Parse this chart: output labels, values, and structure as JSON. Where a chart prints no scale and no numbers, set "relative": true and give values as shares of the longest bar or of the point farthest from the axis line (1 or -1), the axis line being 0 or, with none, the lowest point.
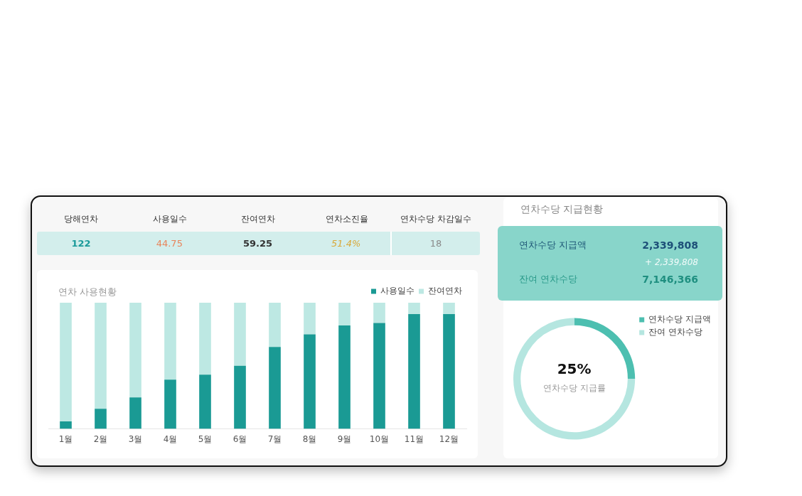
{
  "chart_data": [
    {
      "type": "other",
      "categories": [
        "당해연차",
        "사용일수",
        "잔여연차",
        "연차소진율",
        "연차수당 차감일수"
      ],
      "value_labels": [
        "122",
        "44.75",
        "59.25",
        "51.4%",
        "18"
      ],
      "colors": [
        "#1a9a9a",
        "#e8845a",
        "#333333",
        "#d9a93a",
        "#8a8a8a"
      ]
    },
    {
      "type": "bar",
      "title": "연차 사용현황",
      "categories": [
        "1월",
        "2월",
        "3월",
        "4월",
        "5월",
        "6월",
        "7월",
        "8월",
        "9월",
        "10월",
        "11월",
        "12월"
      ],
      "stacked": true,
      "relative": true,
      "legend": "top right",
      "grid": false,
      "series": [
        {
          "name": "사용일수",
          "color": "#1a9a94",
          "values": [
            0.06,
            0.16,
            0.25,
            0.39,
            0.43,
            0.5,
            0.65,
            0.75,
            0.82,
            0.84,
            0.91,
            0.91
          ]
        },
        {
          "name": "잔여연차",
          "color": "#bde8e3",
          "values": [
            0.94,
            0.84,
            0.75,
            0.61,
            0.57,
            0.5,
            0.35,
            0.25,
            0.18,
            0.16,
            0.09,
            0.09
          ]
        }
      ]
    },
    {
      "type": "other",
      "title": "연차수당 지급현황",
      "categories": [
        "연차수당 지급액",
        null,
        "잔여 연차수당"
      ],
      "value_labels": [
        "2,339,808",
        "+ 2,339,808",
        "7,146,366"
      ]
    },
    {
      "type": "donut",
      "categories": [
        "연차수당 지급액",
        "잔여 연차수당"
      ],
      "values": [
        25,
        75
      ],
      "colors": [
        "#4dbfb0",
        "#b5e6e0"
      ],
      "legend": "right",
      "annotations": [
        "25%",
        "연차수당 지급률"
      ]
    }
  ]
}
